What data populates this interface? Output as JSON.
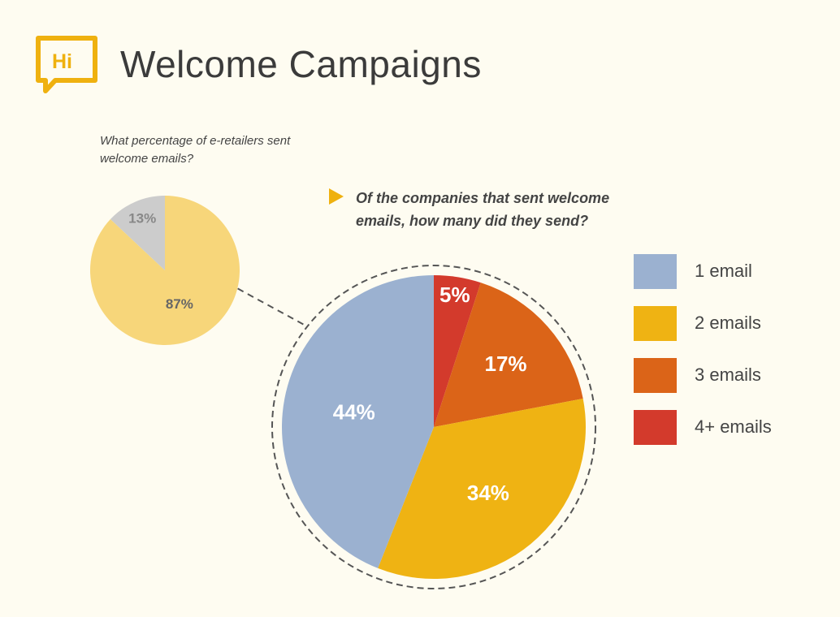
{
  "header": {
    "logo_text": "Hi",
    "title": "Welcome Campaigns",
    "brand_color": "#efb10f"
  },
  "chart_data": [
    {
      "type": "pie",
      "title": "What percentage of e-retailers sent welcome emails?",
      "slices": [
        {
          "value": 87,
          "label": "87%",
          "color": "#f7d67a"
        },
        {
          "value": 13,
          "label": "13%",
          "color": "#cccccc"
        }
      ]
    },
    {
      "type": "pie",
      "title": "Of the companies that sent welcome emails, how many did they send?",
      "legend_position": "right",
      "slices": [
        {
          "name": "4+ emails",
          "value": 5,
          "label": "5%",
          "color": "#d33a2c"
        },
        {
          "name": "3 emails",
          "value": 17,
          "label": "17%",
          "color": "#db6418"
        },
        {
          "name": "2 emails",
          "value": 34,
          "label": "34%",
          "color": "#efb313"
        },
        {
          "name": "1 email",
          "value": 44,
          "label": "44%",
          "color": "#9bb1d0"
        }
      ],
      "legend": [
        {
          "name": "1 email",
          "color": "#9bb1d0"
        },
        {
          "name": "2 emails",
          "color": "#efb313"
        },
        {
          "name": "3 emails",
          "color": "#db6418"
        },
        {
          "name": "4+ emails",
          "color": "#d33a2c"
        }
      ]
    }
  ]
}
